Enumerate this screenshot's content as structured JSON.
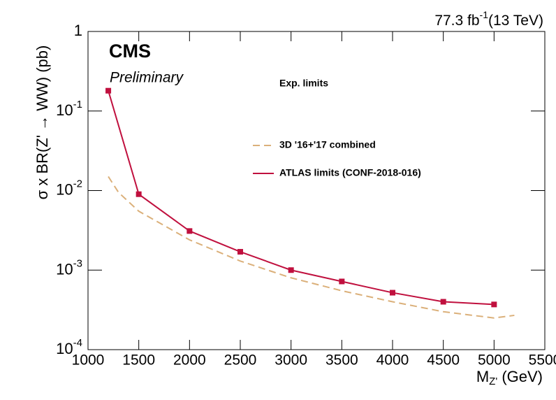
{
  "chart_data": {
    "type": "line",
    "top_right": {
      "text": "77.3 fb",
      "exponent": "-1",
      "suffix": "(13 TeV)"
    },
    "experiment": "CMS",
    "status": "Preliminary",
    "y_label": "σ x BR(Z' → WW) (pb)",
    "x_label": {
      "text": "M",
      "subscript": "Z'",
      "suffix": " (GeV)"
    },
    "legend_title": "Exp. limits",
    "log_y": true,
    "xlim": [
      1000,
      5500
    ],
    "xticks": [
      1000,
      1500,
      2000,
      2500,
      3000,
      3500,
      4000,
      4500,
      5000,
      5500
    ],
    "ylim": [
      0.0001,
      1
    ],
    "yticks": [
      1,
      {
        "value": 0.1,
        "label": "10",
        "exponent": "-1"
      },
      {
        "value": 0.01,
        "label": "10",
        "exponent": "-2"
      },
      {
        "value": 0.001,
        "label": "10",
        "exponent": "-3"
      },
      {
        "value": 0.0001,
        "label": "10",
        "exponent": "-4"
      }
    ],
    "series": [
      {
        "name": "3D '16+'17 combined",
        "color": "#dbb07a",
        "dashed": true,
        "markers": false,
        "x": [
          1200,
          1300,
          1500,
          2000,
          2500,
          3000,
          3500,
          4000,
          4500,
          5000,
          5200
        ],
        "values": [
          0.015,
          0.0095,
          0.0055,
          0.0024,
          0.0013,
          0.0008,
          0.00055,
          0.0004,
          0.0003,
          0.00025,
          0.00027
        ]
      },
      {
        "name": "ATLAS limits (CONF-2018-016)",
        "color": "#c0103e",
        "dashed": false,
        "markers": true,
        "x": [
          1200,
          1500,
          2000,
          2500,
          3000,
          3500,
          4000,
          4500,
          5000
        ],
        "values": [
          0.18,
          0.009,
          0.0031,
          0.0017,
          0.001,
          0.00072,
          0.00052,
          0.0004,
          0.00037
        ]
      }
    ]
  }
}
